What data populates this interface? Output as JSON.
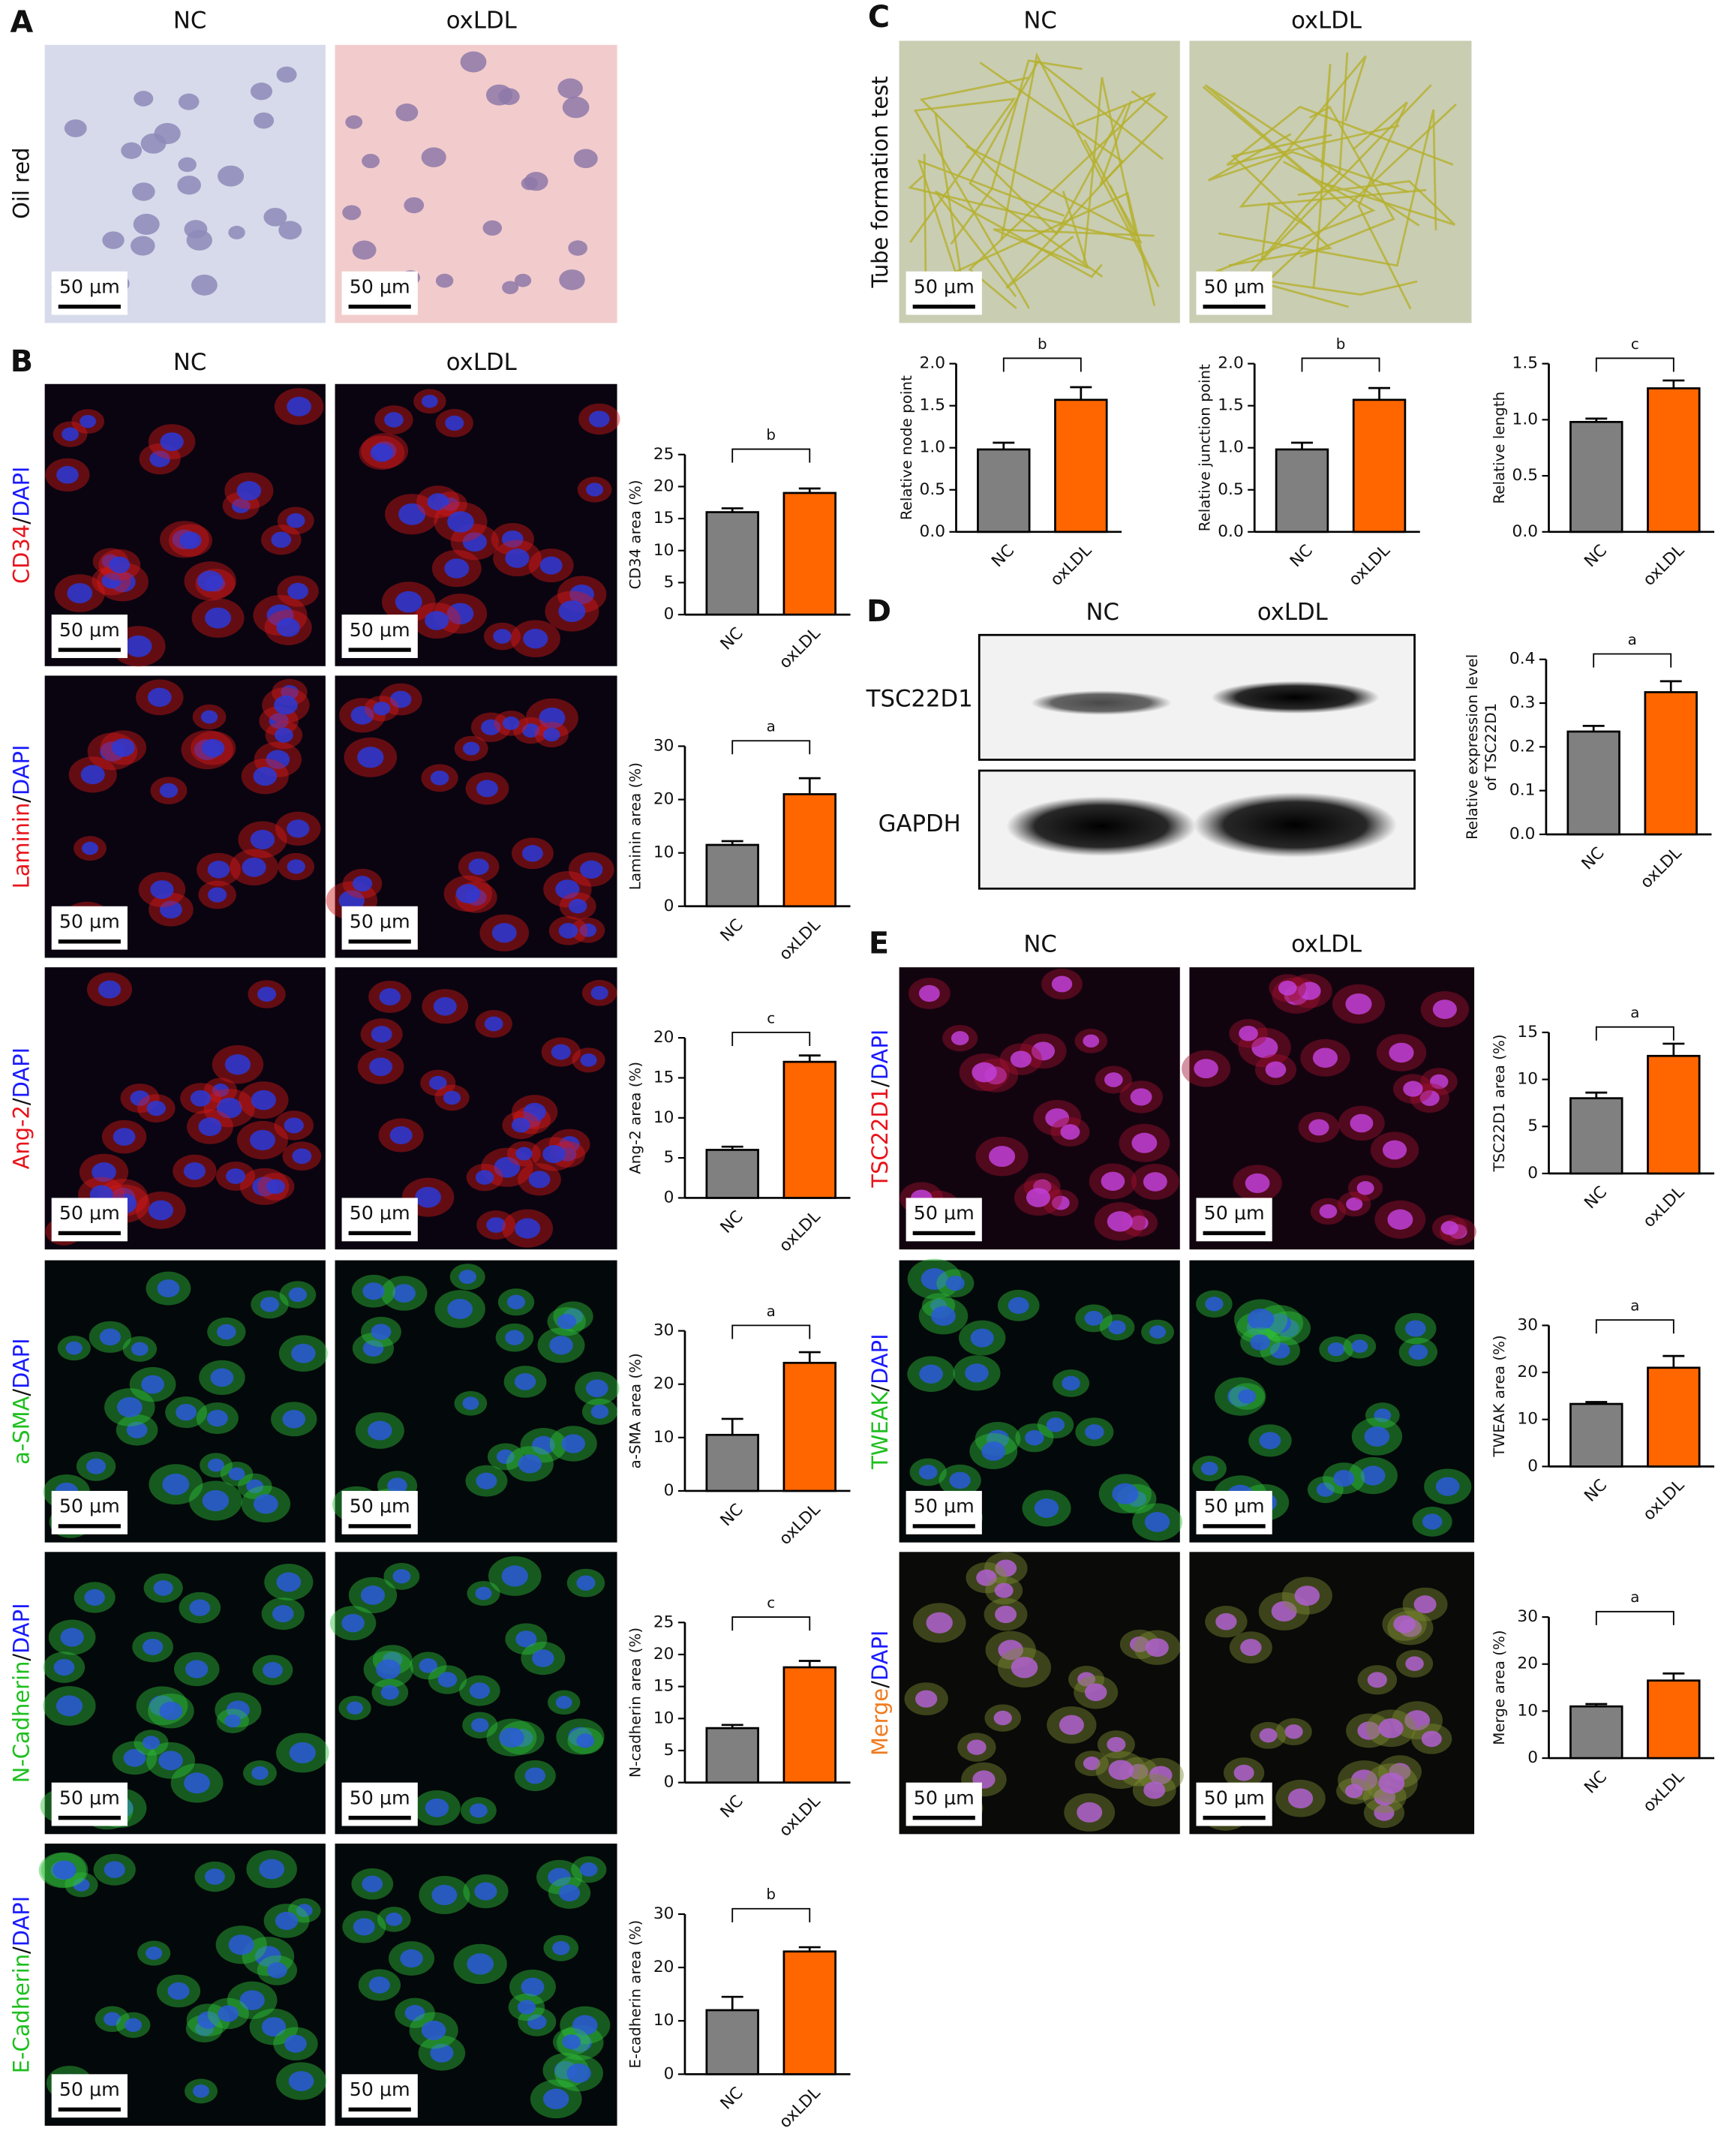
{
  "figure": {
    "panels": [
      "A",
      "B",
      "C",
      "D",
      "E"
    ],
    "columns": [
      "NC",
      "oxLDL"
    ],
    "scale_bar": "50 μm",
    "row_label_A": "Oil red",
    "row_label_C": "Tube formation test",
    "rows_B": [
      {
        "stain": "CD34",
        "sep": "/",
        "counter": "DAPI",
        "color": "#e8141c"
      },
      {
        "stain": "Laminin",
        "sep": "/",
        "counter": "DAPI",
        "color": "#e8141c"
      },
      {
        "stain": "Ang-2",
        "sep": "/",
        "counter": "DAPI",
        "color": "#e8141c"
      },
      {
        "stain": "a-SMA",
        "sep": "/",
        "counter": "DAPI",
        "color": "#1fbf1f"
      },
      {
        "stain": "N-Cadherin",
        "sep": "/",
        "counter": "DAPI",
        "color": "#1fbf1f"
      },
      {
        "stain": "E-Cadherin",
        "sep": "/",
        "counter": "DAPI",
        "color": "#1fbf1f"
      }
    ],
    "rows_E": [
      {
        "stain": "TSC22D1",
        "sep": "/",
        "counter": "DAPI",
        "color": "#e8141c"
      },
      {
        "stain": "TWEAK",
        "sep": "/",
        "counter": "DAPI",
        "color": "#1fbf1f"
      },
      {
        "stain": "Merge",
        "sep": "/",
        "counter": "DAPI",
        "color": "#f07b1f"
      }
    ],
    "blot_bands": [
      "TSC22D1",
      "GAPDH"
    ]
  },
  "chart_data": [
    {
      "type": "bar",
      "y_label": "CD34 area (%)",
      "categories": [
        "NC",
        "oxLDL"
      ],
      "values": [
        16,
        19
      ],
      "errors": [
        0.6,
        0.7
      ],
      "colors": [
        "#808080",
        "#ff6600"
      ],
      "ylim": [
        0,
        25
      ],
      "yticks": [
        0,
        5,
        10,
        15,
        20,
        25
      ],
      "significance": "b"
    },
    {
      "type": "bar",
      "y_label": "Laminin area (%)",
      "categories": [
        "NC",
        "oxLDL"
      ],
      "values": [
        11.5,
        21
      ],
      "errors": [
        0.7,
        3
      ],
      "colors": [
        "#808080",
        "#ff6600"
      ],
      "ylim": [
        0,
        30
      ],
      "yticks": [
        0,
        10,
        20,
        30
      ],
      "significance": "a"
    },
    {
      "type": "bar",
      "y_label": "Ang-2 area (%)",
      "categories": [
        "NC",
        "oxLDL"
      ],
      "values": [
        6,
        17
      ],
      "errors": [
        0.4,
        0.8
      ],
      "colors": [
        "#808080",
        "#ff6600"
      ],
      "ylim": [
        0,
        20
      ],
      "yticks": [
        0,
        5,
        10,
        15,
        20
      ],
      "significance": "c"
    },
    {
      "type": "bar",
      "y_label": "a-SMA area (%)",
      "categories": [
        "NC",
        "oxLDL"
      ],
      "values": [
        10.5,
        24
      ],
      "errors": [
        3,
        2
      ],
      "colors": [
        "#808080",
        "#ff6600"
      ],
      "ylim": [
        0,
        30
      ],
      "yticks": [
        0,
        10,
        20,
        30
      ],
      "significance": "a"
    },
    {
      "type": "bar",
      "y_label": "N-cadherin area (%)",
      "categories": [
        "NC",
        "oxLDL"
      ],
      "values": [
        8.5,
        18
      ],
      "errors": [
        0.5,
        1
      ],
      "colors": [
        "#808080",
        "#ff6600"
      ],
      "ylim": [
        0,
        25
      ],
      "yticks": [
        0,
        5,
        10,
        15,
        20,
        25
      ],
      "significance": "c"
    },
    {
      "type": "bar",
      "y_label": "E-cadherin area (%)",
      "categories": [
        "NC",
        "oxLDL"
      ],
      "values": [
        12,
        23
      ],
      "errors": [
        2.5,
        0.8
      ],
      "colors": [
        "#808080",
        "#ff6600"
      ],
      "ylim": [
        0,
        30
      ],
      "yticks": [
        0,
        10,
        20,
        30
      ],
      "significance": "b"
    },
    {
      "type": "bar",
      "y_label": "Relative node point",
      "categories": [
        "NC",
        "oxLDL"
      ],
      "values": [
        0.98,
        1.57
      ],
      "errors": [
        0.08,
        0.15
      ],
      "colors": [
        "#808080",
        "#ff6600"
      ],
      "ylim": [
        0,
        2
      ],
      "yticks": [
        {
          "value": 0,
          "label": "0.0"
        },
        {
          "value": 0.5,
          "label": "0.5"
        },
        {
          "value": 1,
          "label": "1.0"
        },
        {
          "value": 1.5,
          "label": "1.5"
        },
        {
          "value": 2,
          "label": "2.0"
        }
      ],
      "significance": "b"
    },
    {
      "type": "bar",
      "y_label": "Relative junction point",
      "categories": [
        "NC",
        "oxLDL"
      ],
      "values": [
        0.98,
        1.57
      ],
      "errors": [
        0.08,
        0.14
      ],
      "colors": [
        "#808080",
        "#ff6600"
      ],
      "ylim": [
        0,
        2
      ],
      "yticks": [
        {
          "value": 0,
          "label": "0.0"
        },
        {
          "value": 0.5,
          "label": "0.5"
        },
        {
          "value": 1,
          "label": "1.0"
        },
        {
          "value": 1.5,
          "label": "1.5"
        },
        {
          "value": 2,
          "label": "2.0"
        }
      ],
      "significance": "b"
    },
    {
      "type": "bar",
      "y_label": "Relative length",
      "categories": [
        "NC",
        "oxLDL"
      ],
      "values": [
        0.98,
        1.28
      ],
      "errors": [
        0.03,
        0.07
      ],
      "colors": [
        "#808080",
        "#ff6600"
      ],
      "ylim": [
        0,
        1.5
      ],
      "yticks": [
        {
          "value": 0,
          "label": "0.0"
        },
        {
          "value": 0.5,
          "label": "0.5"
        },
        {
          "value": 1,
          "label": "1.0"
        },
        {
          "value": 1.5,
          "label": "1.5"
        }
      ],
      "significance": "c"
    },
    {
      "type": "bar",
      "y_label": [
        "Relative expression level",
        "of TSC22D1"
      ],
      "categories": [
        "NC",
        "oxLDL"
      ],
      "values": [
        0.235,
        0.325
      ],
      "errors": [
        0.013,
        0.025
      ],
      "colors": [
        "#808080",
        "#ff6600"
      ],
      "ylim": [
        0,
        0.4
      ],
      "yticks": [
        {
          "value": 0,
          "label": "0.0"
        },
        0.1,
        0.2,
        0.3,
        0.4
      ],
      "significance": "a"
    },
    {
      "type": "bar",
      "y_label": "TSC22D1 area (%)",
      "categories": [
        "NC",
        "oxLDL"
      ],
      "values": [
        8,
        12.5
      ],
      "errors": [
        0.6,
        1.3
      ],
      "colors": [
        "#808080",
        "#ff6600"
      ],
      "ylim": [
        0,
        15
      ],
      "yticks": [
        0,
        5,
        10,
        15
      ],
      "significance": "a"
    },
    {
      "type": "bar",
      "y_label": "TWEAK area (%)",
      "categories": [
        "NC",
        "oxLDL"
      ],
      "values": [
        13.3,
        21
      ],
      "errors": [
        0.4,
        2.5
      ],
      "colors": [
        "#808080",
        "#ff6600"
      ],
      "ylim": [
        0,
        30
      ],
      "yticks": [
        0,
        10,
        20,
        30
      ],
      "significance": "a"
    },
    {
      "type": "bar",
      "y_label": "Merge area (%)",
      "categories": [
        "NC",
        "oxLDL"
      ],
      "values": [
        11,
        16.5
      ],
      "errors": [
        0.5,
        1.5
      ],
      "colors": [
        "#808080",
        "#ff6600"
      ],
      "ylim": [
        0,
        30
      ],
      "yticks": [
        0,
        10,
        20,
        30
      ],
      "significance": "a"
    }
  ]
}
